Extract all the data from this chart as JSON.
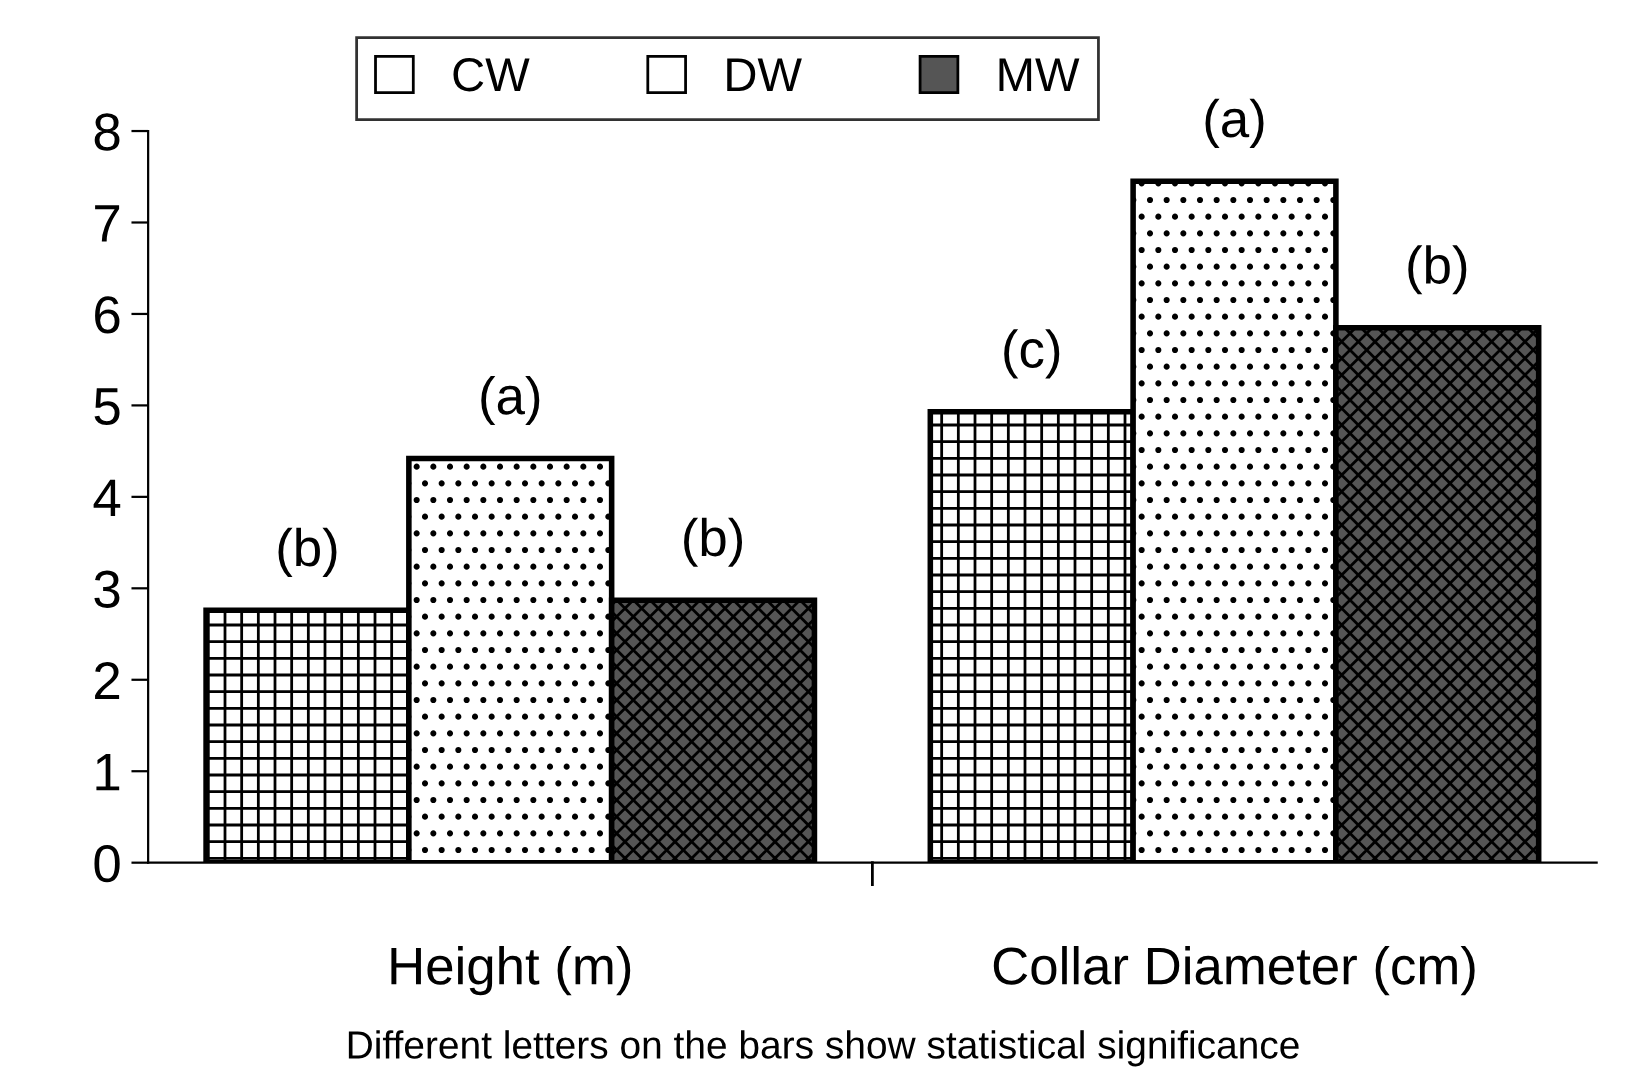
{
  "chart_data": {
    "type": "bar",
    "categories": [
      "Height (m)",
      "Collar Diameter (cm)"
    ],
    "series": [
      {
        "name": "CW",
        "color": "#ffffff",
        "values": [
          2.76,
          4.93
        ]
      },
      {
        "name": "DW",
        "color": "#ffffff",
        "values": [
          4.42,
          7.45
        ]
      },
      {
        "name": "MW",
        "color": "#555555",
        "values": [
          2.87,
          5.85
        ]
      }
    ],
    "ylim": [
      0,
      8
    ],
    "yticks": [
      0,
      1,
      2,
      3,
      4,
      5,
      6,
      7,
      8
    ],
    "grid": false,
    "legend": "top",
    "annotations": [
      "(b)",
      "(c)",
      "(a)",
      "(a)",
      "(b)",
      "(b)",
      "Different letters on the bars show statistical significance"
    ]
  }
}
